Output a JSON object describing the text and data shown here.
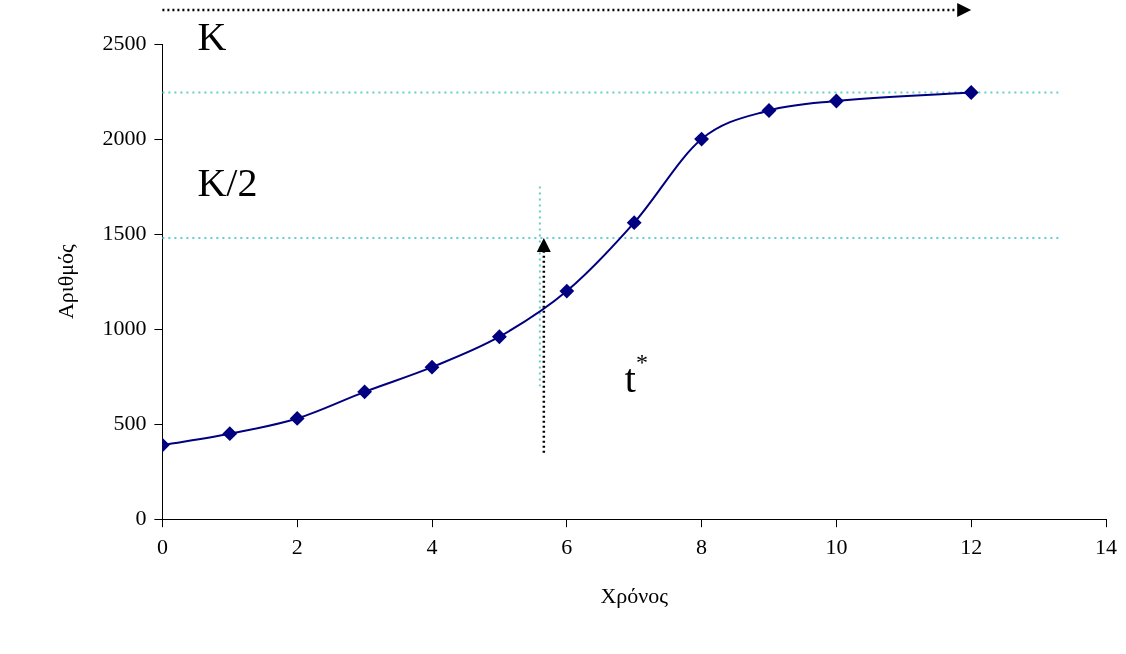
{
  "chart_data": {
    "type": "line",
    "xlabel": "Χρόνος",
    "ylabel": "Αριθμός",
    "x": [
      0,
      1,
      2,
      3,
      4,
      5,
      6,
      7,
      8,
      9,
      10,
      12
    ],
    "series": [
      {
        "color": "#000080",
        "values": [
          390,
          450,
          530,
          670,
          800,
          960,
          1200,
          1560,
          2000,
          2150,
          2200,
          2245
        ]
      }
    ],
    "xlim": [
      0,
      14
    ],
    "xticks": [
      0,
      2,
      4,
      6,
      8,
      10,
      12,
      14
    ],
    "ylim": [
      0,
      2500
    ],
    "yticks": [
      0,
      500,
      1000,
      1500,
      2000,
      2500
    ],
    "grid": false,
    "legend": false,
    "marker": "diamond",
    "line_style": "solid",
    "ref_lines": [
      {
        "axis": "y",
        "value": 2245,
        "label": "K",
        "color": "#66cccc",
        "line_style": "dotted"
      },
      {
        "axis": "y",
        "value": 1480,
        "label": "K/2",
        "color": "#66cccc",
        "line_style": "dotted"
      },
      {
        "axis": "x",
        "value": 5.6,
        "color": "#66cccc",
        "line_style": "dotted"
      }
    ],
    "annotations": [
      "t$^{*}$"
    ]
  }
}
